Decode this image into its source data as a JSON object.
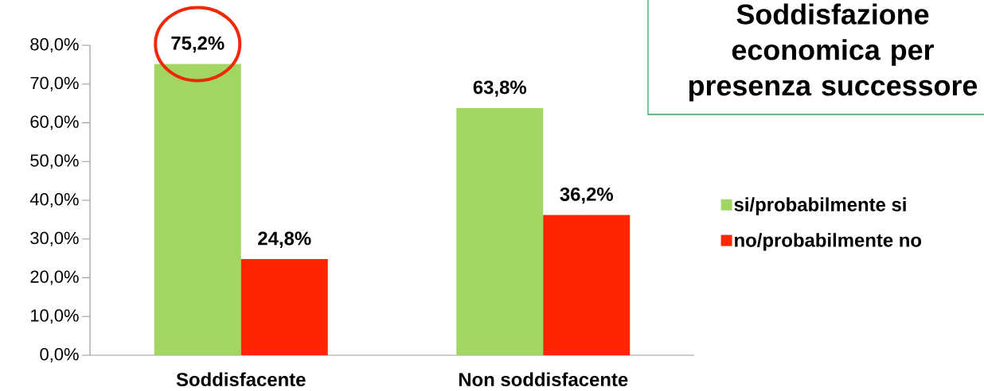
{
  "chart_data": {
    "type": "bar",
    "title": "Soddisfazione economica per presenza successore",
    "categories": [
      "Soddisfacente",
      "Non soddisfacente"
    ],
    "series": [
      {
        "name": "si/probabilmente si",
        "color": "#a1d662",
        "values": [
          75.2,
          63.8
        ],
        "value_labels": [
          "75,2%",
          "63,8%"
        ]
      },
      {
        "name": "no/probabilmente no",
        "color": "#ff2600",
        "values": [
          24.8,
          36.2
        ],
        "value_labels": [
          "24,8%",
          "36,2%"
        ]
      }
    ],
    "ylim": [
      0,
      80
    ],
    "yticks": [
      {
        "value": 0,
        "label": "0,0%"
      },
      {
        "value": 10,
        "label": "10,0%"
      },
      {
        "value": 20,
        "label": "20,0%"
      },
      {
        "value": 30,
        "label": "30,0%"
      },
      {
        "value": 40,
        "label": "40,0%"
      },
      {
        "value": 50,
        "label": "50,0%"
      },
      {
        "value": 60,
        "label": "60,0%"
      },
      {
        "value": 70,
        "label": "70,0%"
      },
      {
        "value": 80,
        "label": "80,0%"
      }
    ],
    "legend": "right"
  }
}
